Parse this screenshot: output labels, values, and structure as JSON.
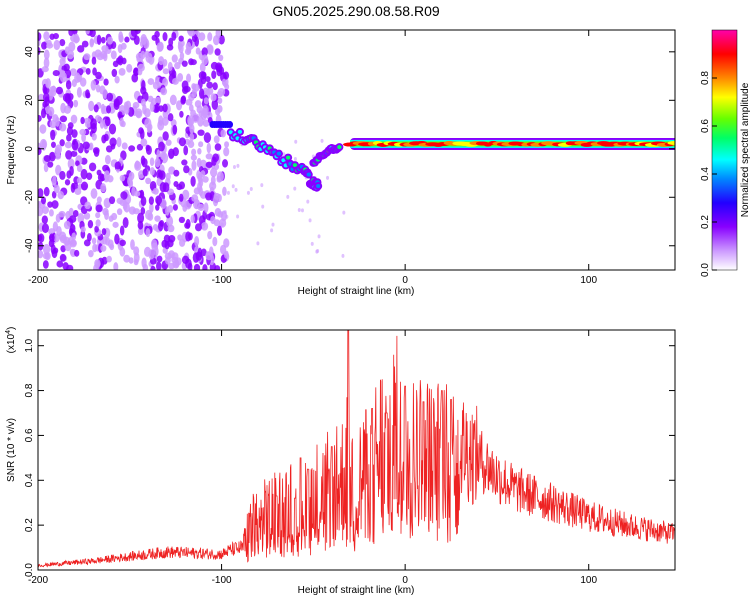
{
  "title": "GN05.2025.290.08.58.R09",
  "chart_data": [
    {
      "type": "heatmap",
      "title": "GN05.2025.290.08.58.R09",
      "xlabel": "Height of straight line (km)",
      "ylabel": "Frequency (Hz)",
      "xlim": [
        -200,
        147
      ],
      "ylim": [
        -50,
        49
      ],
      "xticks": [
        -200,
        -100,
        0,
        100
      ],
      "yticks": [
        -40,
        -20,
        0,
        20,
        40
      ],
      "colorbar": {
        "label": "Normalized spectral amplitude",
        "range": [
          0,
          1
        ],
        "ticks": [
          0.0,
          0.2,
          0.4,
          0.6,
          0.8
        ],
        "colors": [
          "#ffffff",
          "#cc99ff",
          "#8800ff",
          "#2200ff",
          "#0088ff",
          "#00ffff",
          "#00ff66",
          "#66ff00",
          "#ffff00",
          "#ff8800",
          "#ff0000",
          "#ff00aa"
        ]
      },
      "features": [
        {
          "name": "noise",
          "x_range": [
            -200,
            -97
          ],
          "freq_range": [
            -50,
            49
          ],
          "amplitude": 0.15
        },
        {
          "name": "tail",
          "x_range": [
            -100,
            -95
          ],
          "freq_center": 10,
          "amplitude": 0.3
        },
        {
          "name": "descending-branch",
          "points": [
            [
              -95,
              6
            ],
            [
              -85,
              4
            ],
            [
              -75,
              0
            ],
            [
              -65,
              -5
            ],
            [
              -55,
              -10
            ],
            [
              -50,
              -14
            ],
            [
              -47,
              -16
            ]
          ],
          "amplitude": 0.35
        },
        {
          "name": "dip",
          "points": [
            [
              -50,
              -6
            ],
            [
              -45,
              -2
            ],
            [
              -40,
              0
            ],
            [
              -35,
              0
            ]
          ],
          "amplitude": 0.4
        },
        {
          "name": "main-band",
          "x_range": [
            -30,
            147
          ],
          "freq_center": 2,
          "amplitude": 0.9
        }
      ]
    },
    {
      "type": "line",
      "xlabel": "Height of straight line (km)",
      "ylabel": "SNR (10 * v/v)",
      "y_scale_label": "(x10",
      "y_scale_exp": "4",
      "xlim": [
        -200,
        147
      ],
      "ylim": [
        0,
        1.07
      ],
      "xticks": [
        -200,
        -100,
        0,
        100
      ],
      "yticks": [
        0.0,
        0.2,
        0.4,
        0.6,
        0.8,
        1.0
      ],
      "color": "#ee2222",
      "envelope": {
        "x": [
          -200,
          -170,
          -150,
          -130,
          -100,
          -95,
          -88,
          -85,
          -80,
          -70,
          -60,
          -50,
          -40,
          -35,
          -31,
          -28,
          -20,
          -10,
          0,
          10,
          20,
          30,
          40,
          50,
          60,
          80,
          100,
          120,
          147
        ],
        "y": [
          0.02,
          0.04,
          0.06,
          0.08,
          0.07,
          0.09,
          0.1,
          0.18,
          0.22,
          0.26,
          0.28,
          0.33,
          0.36,
          0.38,
          0.5,
          0.35,
          0.45,
          0.58,
          0.62,
          0.6,
          0.58,
          0.56,
          0.5,
          0.42,
          0.36,
          0.3,
          0.24,
          0.2,
          0.16
        ]
      },
      "spikes": [
        {
          "x": -70,
          "y": 0.33
        },
        {
          "x": -60,
          "y": 0.32
        },
        {
          "x": -57,
          "y": 0.5
        },
        {
          "x": -53,
          "y": 0.45
        },
        {
          "x": -40,
          "y": 0.55
        },
        {
          "x": -31,
          "y": 1.07
        },
        {
          "x": -18,
          "y": 0.72
        },
        {
          "x": -10,
          "y": 0.7
        },
        {
          "x": 0,
          "y": 0.82
        },
        {
          "x": 10,
          "y": 0.75
        },
        {
          "x": 20,
          "y": 0.8
        },
        {
          "x": 25,
          "y": 0.76
        }
      ]
    }
  ]
}
